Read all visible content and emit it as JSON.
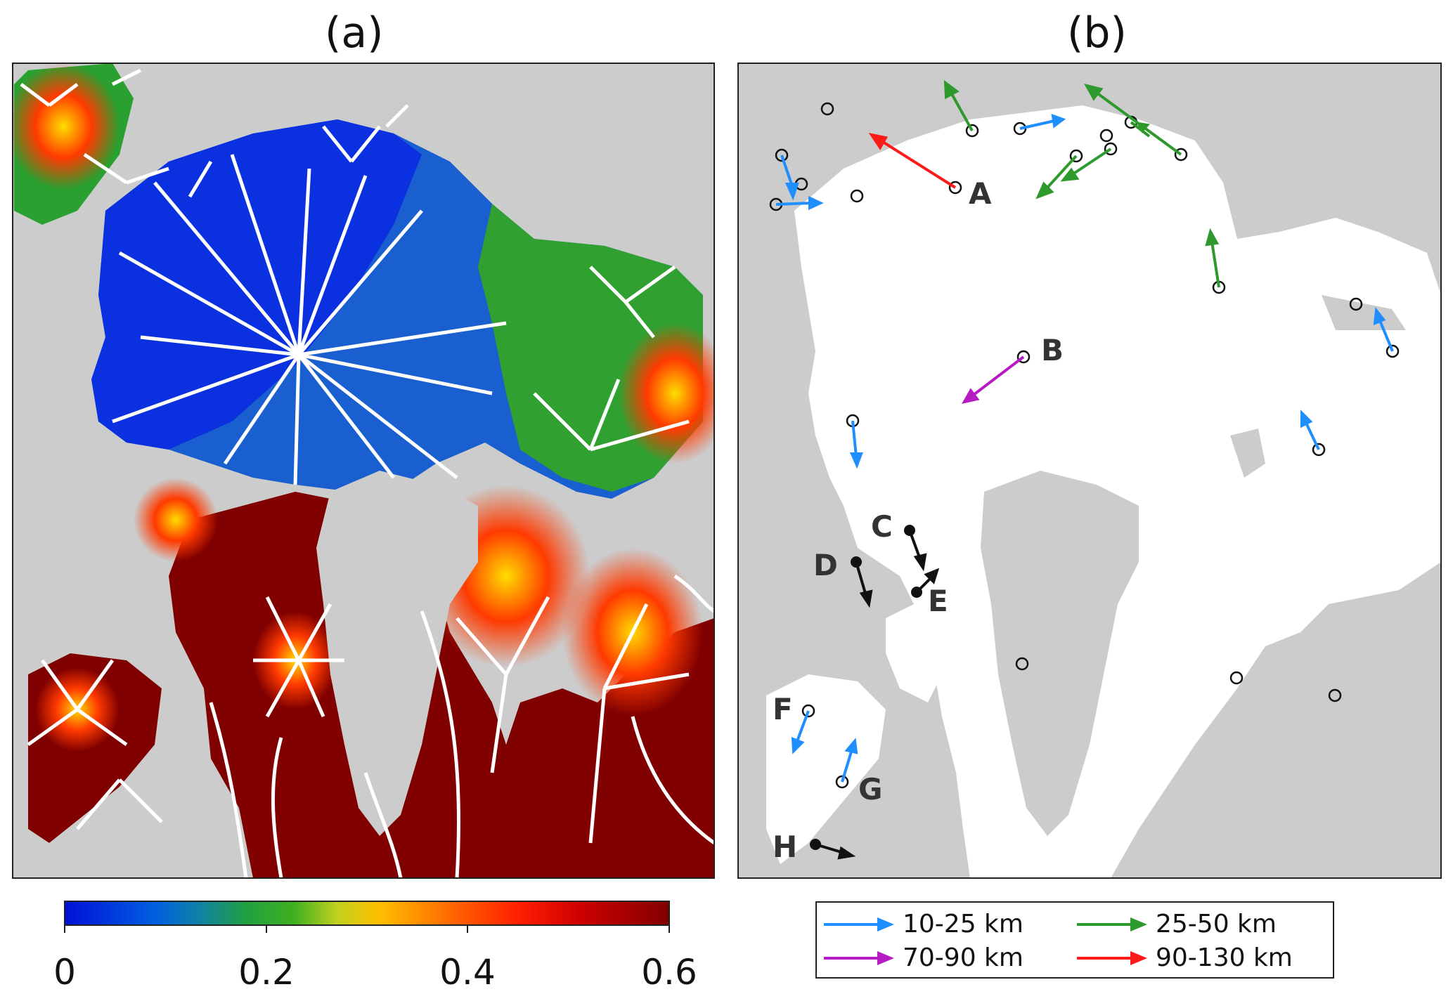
{
  "panels": {
    "a": {
      "title": "(a)"
    },
    "b": {
      "title": "(b)"
    }
  },
  "colorbar": {
    "ticks": [
      "0",
      "0.2",
      "0.4",
      "0.6"
    ],
    "tick_values": [
      0,
      0.2,
      0.4,
      0.6
    ],
    "range": [
      0,
      0.6
    ],
    "colormap": "jet-like"
  },
  "map_labels": {
    "A": "A",
    "B": "B",
    "C": "C",
    "D": "D",
    "E": "E",
    "F": "F",
    "G": "G",
    "H": "H"
  },
  "legend": {
    "items": [
      {
        "label": "10-25 km",
        "color": "#1f8fff"
      },
      {
        "label": "25-50 km",
        "color": "#2e9a2e"
      },
      {
        "label": "70-90 km",
        "color": "#b61cc4"
      },
      {
        "label": "90-130 km",
        "color": "#ff1a1a"
      }
    ]
  },
  "colors": {
    "land": "#cccccc",
    "ocean_b": "#ffffff",
    "black_arrow": "#111111"
  }
}
